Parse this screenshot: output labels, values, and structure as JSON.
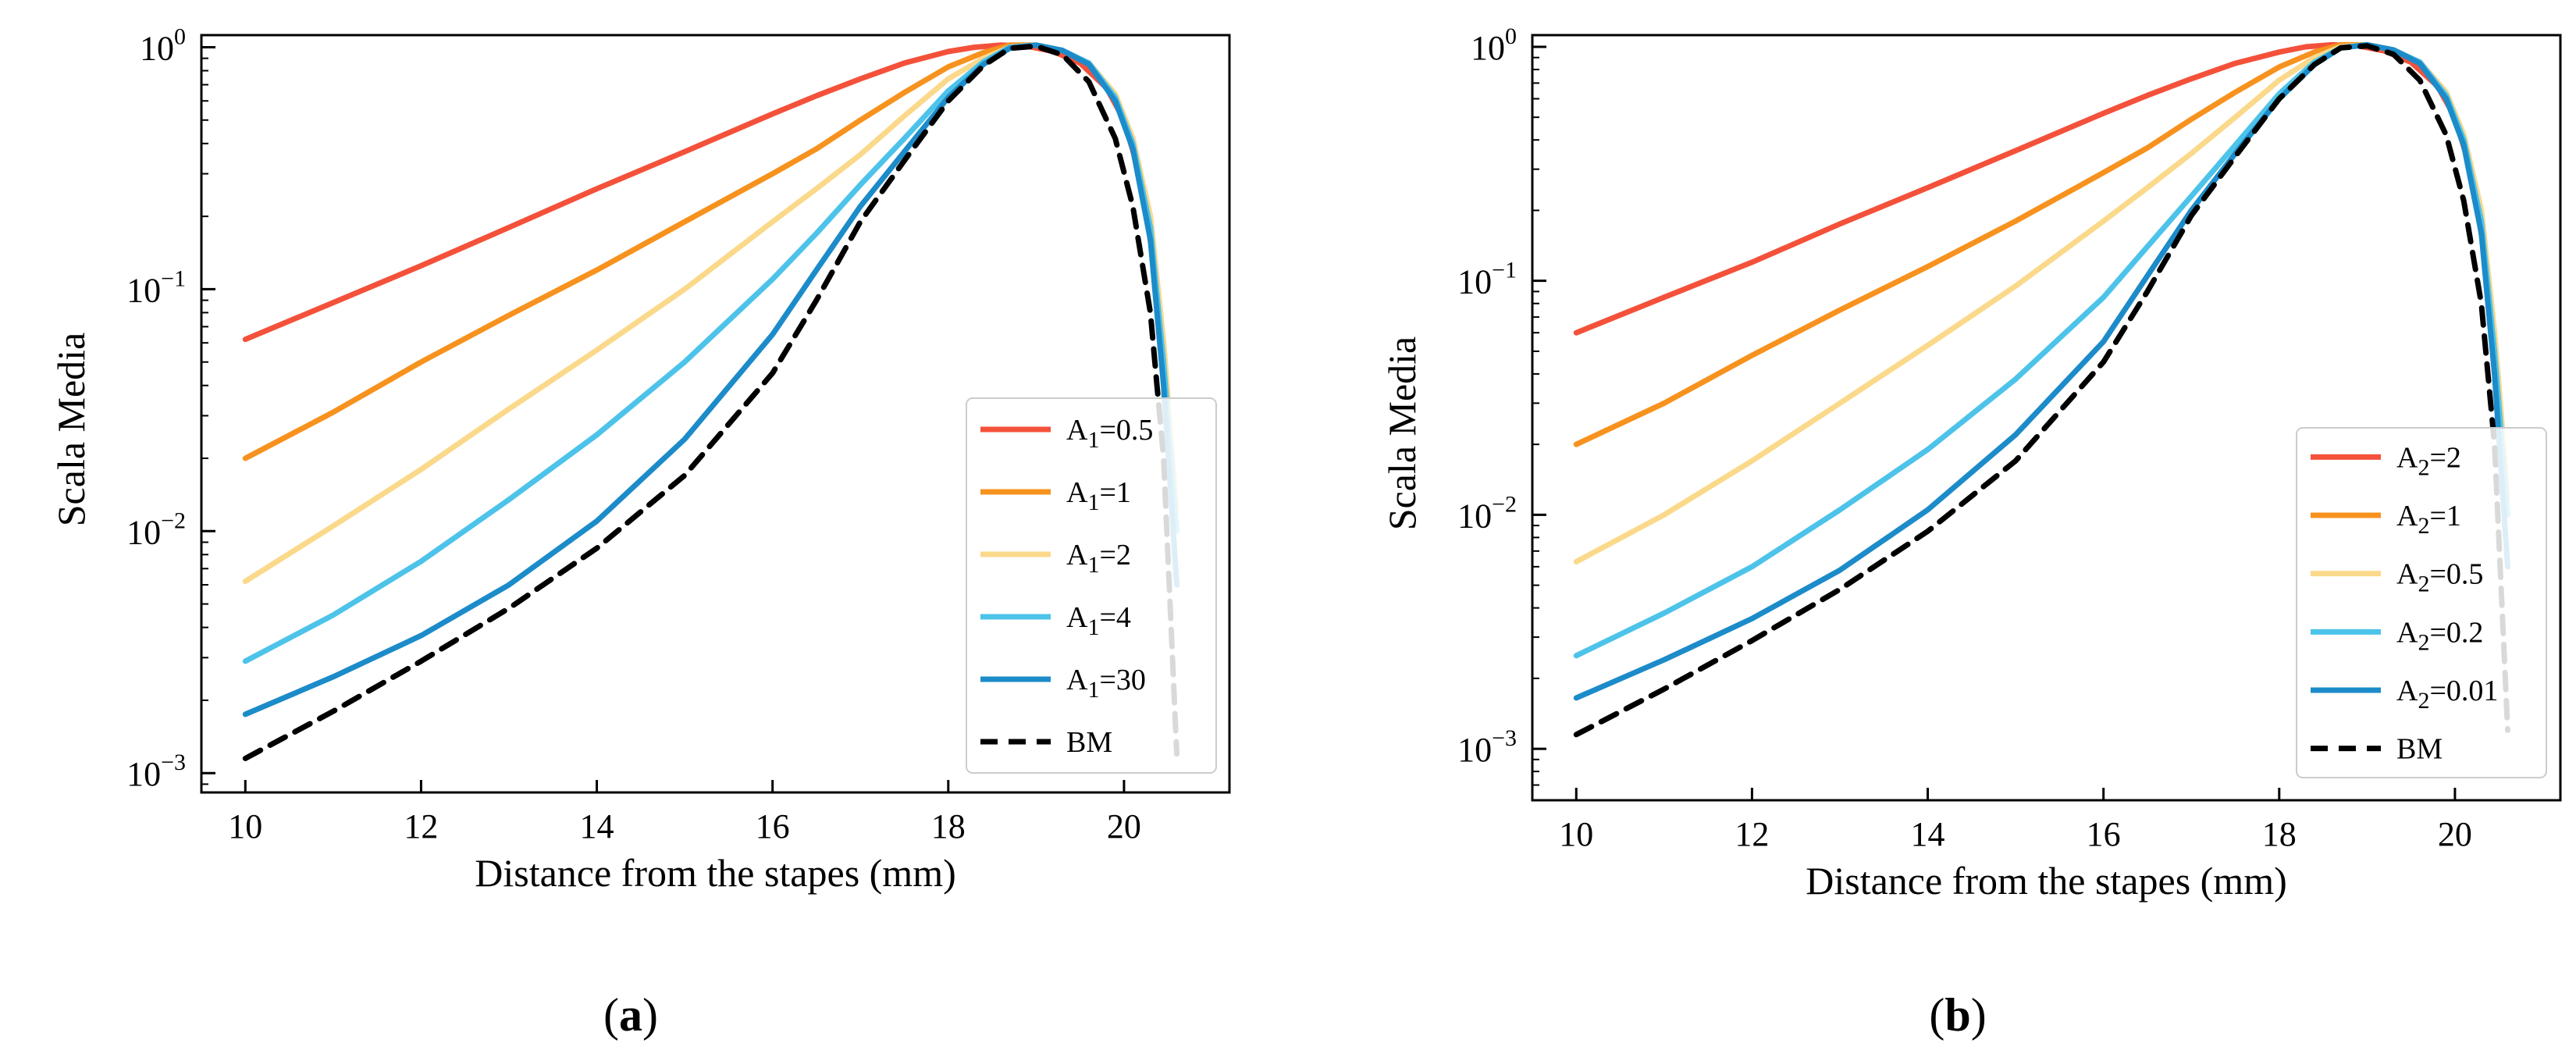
{
  "chart_data": [
    {
      "type": "line",
      "panel_label_open": "(",
      "panel_label_letter": "a",
      "panel_label_close": ")",
      "xlabel": "Distance from the stapes (mm)",
      "ylabel": "Scala Media",
      "xlim": [
        9.5,
        21.2
      ],
      "ylim_log10": [
        -3.08,
        0.05
      ],
      "yscale": "log",
      "xticks": [
        10,
        12,
        14,
        16,
        18,
        20
      ],
      "yticks": [
        {
          "base": "10",
          "exp": "0",
          "value": 1
        },
        {
          "base": "10",
          "exp": "−1",
          "value": 0.1
        },
        {
          "base": "10",
          "exp": "−2",
          "value": 0.01
        },
        {
          "base": "10",
          "exp": "−3",
          "value": 0.001
        }
      ],
      "legend_position": "lower-right",
      "series": [
        {
          "base": "A",
          "sub": "1",
          "suffix": "=0.5",
          "color": "#f4513a",
          "dash": "solid",
          "x": [
            10,
            11,
            12,
            13,
            14,
            15,
            16,
            16.5,
            17,
            17.5,
            18,
            18.3,
            18.6,
            18.9,
            19.2,
            19.5,
            19.8,
            20.0,
            20.2,
            20.4,
            20.55
          ],
          "y": [
            0.062,
            0.088,
            0.125,
            0.18,
            0.26,
            0.37,
            0.53,
            0.63,
            0.74,
            0.86,
            0.96,
            1.0,
            1.02,
            1.01,
            0.96,
            0.86,
            0.68,
            0.5,
            0.28,
            0.09,
            0.02
          ]
        },
        {
          "base": "A",
          "sub": "1",
          "suffix": "=1",
          "color": "#f7921e",
          "dash": "solid",
          "x": [
            10,
            11,
            12,
            13,
            14,
            15,
            16,
            16.5,
            17,
            17.5,
            18,
            18.4,
            18.7,
            19.0,
            19.3,
            19.6,
            19.9,
            20.1,
            20.3,
            20.45,
            20.6
          ],
          "y": [
            0.02,
            0.031,
            0.05,
            0.078,
            0.12,
            0.19,
            0.3,
            0.38,
            0.5,
            0.65,
            0.83,
            0.95,
            1.02,
            1.02,
            0.97,
            0.86,
            0.64,
            0.42,
            0.2,
            0.06,
            0.012
          ]
        },
        {
          "base": "A",
          "sub": "1",
          "suffix": "=2",
          "color": "#fbd98b",
          "dash": "solid",
          "x": [
            10,
            11,
            12,
            13,
            14,
            15,
            16,
            16.5,
            17,
            17.5,
            18,
            18.4,
            18.7,
            19.0,
            19.3,
            19.6,
            19.9,
            20.1,
            20.3,
            20.45,
            20.6
          ],
          "y": [
            0.0062,
            0.0105,
            0.018,
            0.032,
            0.056,
            0.1,
            0.19,
            0.26,
            0.36,
            0.52,
            0.74,
            0.9,
            1.0,
            1.02,
            0.97,
            0.86,
            0.64,
            0.42,
            0.2,
            0.06,
            0.012
          ]
        },
        {
          "base": "A",
          "sub": "1",
          "suffix": "=4",
          "color": "#4dc3ea",
          "dash": "solid",
          "x": [
            10,
            11,
            12,
            13,
            14,
            15,
            16,
            16.5,
            17,
            17.5,
            18,
            18.4,
            18.7,
            19.0,
            19.3,
            19.6,
            19.9,
            20.1,
            20.3,
            20.45,
            20.6
          ],
          "y": [
            0.0029,
            0.0045,
            0.0075,
            0.0135,
            0.025,
            0.05,
            0.11,
            0.17,
            0.27,
            0.42,
            0.66,
            0.87,
            1.0,
            1.02,
            0.97,
            0.86,
            0.62,
            0.4,
            0.18,
            0.05,
            0.01
          ]
        },
        {
          "base": "A",
          "sub": "1",
          "suffix": "=30",
          "color": "#1c8bc9",
          "dash": "solid",
          "x": [
            10,
            11,
            12,
            13,
            14,
            15,
            16,
            16.5,
            17,
            17.5,
            18,
            18.4,
            18.7,
            19.0,
            19.3,
            19.6,
            19.9,
            20.1,
            20.3,
            20.45,
            20.6
          ],
          "y": [
            0.00175,
            0.0025,
            0.0037,
            0.006,
            0.011,
            0.024,
            0.065,
            0.12,
            0.22,
            0.37,
            0.62,
            0.85,
            0.99,
            1.02,
            0.97,
            0.85,
            0.6,
            0.38,
            0.16,
            0.04,
            0.006
          ]
        },
        {
          "base": "BM",
          "sub": "",
          "suffix": "",
          "color": "#000000",
          "dash": "dashed",
          "x": [
            10,
            11,
            12,
            13,
            14,
            15,
            16,
            16.5,
            17,
            17.5,
            18,
            18.4,
            18.7,
            19.0,
            19.3,
            19.6,
            19.9,
            20.1,
            20.3,
            20.45,
            20.6
          ],
          "y": [
            0.00115,
            0.0018,
            0.0029,
            0.0048,
            0.0085,
            0.017,
            0.045,
            0.09,
            0.19,
            0.34,
            0.6,
            0.84,
            0.99,
            1.01,
            0.93,
            0.72,
            0.42,
            0.22,
            0.08,
            0.02,
            0.0012
          ]
        }
      ]
    },
    {
      "type": "line",
      "panel_label_open": "(",
      "panel_label_letter": "b",
      "panel_label_close": ")",
      "xlabel": "Distance from the stapes (mm)",
      "ylabel": "Scala Media",
      "xlim": [
        9.5,
        21.2
      ],
      "ylim_log10": [
        -3.22,
        0.05
      ],
      "yscale": "log",
      "xticks": [
        10,
        12,
        14,
        16,
        18,
        20
      ],
      "yticks": [
        {
          "base": "10",
          "exp": "0",
          "value": 1
        },
        {
          "base": "10",
          "exp": "−1",
          "value": 0.1
        },
        {
          "base": "10",
          "exp": "−2",
          "value": 0.01
        },
        {
          "base": "10",
          "exp": "−3",
          "value": 0.001
        }
      ],
      "legend_position": "lower-right",
      "series": [
        {
          "base": "A",
          "sub": "2",
          "suffix": "=2",
          "color": "#f4513a",
          "dash": "solid",
          "x": [
            10,
            11,
            12,
            13,
            14,
            15,
            16,
            16.5,
            17,
            17.5,
            18,
            18.3,
            18.6,
            18.9,
            19.2,
            19.5,
            19.8,
            20.0,
            20.2,
            20.4,
            20.55
          ],
          "y": [
            0.06,
            0.085,
            0.12,
            0.175,
            0.25,
            0.36,
            0.52,
            0.62,
            0.73,
            0.85,
            0.95,
            1.0,
            1.02,
            1.01,
            0.96,
            0.86,
            0.68,
            0.5,
            0.28,
            0.09,
            0.02
          ]
        },
        {
          "base": "A",
          "sub": "2",
          "suffix": "=1",
          "color": "#f7921e",
          "dash": "solid",
          "x": [
            10,
            11,
            12,
            13,
            14,
            15,
            16,
            16.5,
            17,
            17.5,
            18,
            18.4,
            18.7,
            19.0,
            19.3,
            19.6,
            19.9,
            20.1,
            20.3,
            20.45,
            20.6
          ],
          "y": [
            0.02,
            0.03,
            0.048,
            0.075,
            0.115,
            0.18,
            0.29,
            0.37,
            0.49,
            0.64,
            0.82,
            0.95,
            1.02,
            1.02,
            0.97,
            0.86,
            0.64,
            0.42,
            0.2,
            0.06,
            0.012
          ]
        },
        {
          "base": "A",
          "sub": "2",
          "suffix": "=0.5",
          "color": "#fbd98b",
          "dash": "solid",
          "x": [
            10,
            11,
            12,
            13,
            14,
            15,
            16,
            16.5,
            17,
            17.5,
            18,
            18.4,
            18.7,
            19.0,
            19.3,
            19.6,
            19.9,
            20.1,
            20.3,
            20.45,
            20.6
          ],
          "y": [
            0.0063,
            0.01,
            0.017,
            0.03,
            0.053,
            0.095,
            0.18,
            0.25,
            0.35,
            0.5,
            0.72,
            0.9,
            1.0,
            1.02,
            0.97,
            0.86,
            0.64,
            0.42,
            0.2,
            0.06,
            0.012
          ]
        },
        {
          "base": "A",
          "sub": "2",
          "suffix": "=0.2",
          "color": "#4dc3ea",
          "dash": "solid",
          "x": [
            10,
            11,
            12,
            13,
            14,
            15,
            16,
            16.5,
            17,
            17.5,
            18,
            18.4,
            18.7,
            19.0,
            19.3,
            19.6,
            19.9,
            20.1,
            20.3,
            20.45,
            20.6
          ],
          "y": [
            0.0025,
            0.0038,
            0.006,
            0.0105,
            0.019,
            0.038,
            0.085,
            0.14,
            0.23,
            0.38,
            0.63,
            0.86,
            0.99,
            1.02,
            0.97,
            0.86,
            0.62,
            0.4,
            0.18,
            0.05,
            0.01
          ]
        },
        {
          "base": "A",
          "sub": "2",
          "suffix": "=0.01",
          "color": "#1c8bc9",
          "dash": "solid",
          "x": [
            10,
            11,
            12,
            13,
            14,
            15,
            16,
            16.5,
            17,
            17.5,
            18,
            18.4,
            18.7,
            19.0,
            19.3,
            19.6,
            19.9,
            20.1,
            20.3,
            20.45,
            20.6
          ],
          "y": [
            0.00165,
            0.0024,
            0.0036,
            0.0058,
            0.0105,
            0.022,
            0.055,
            0.105,
            0.2,
            0.35,
            0.6,
            0.84,
            0.99,
            1.02,
            0.97,
            0.85,
            0.6,
            0.38,
            0.16,
            0.04,
            0.006
          ]
        },
        {
          "base": "BM",
          "sub": "",
          "suffix": "",
          "color": "#000000",
          "dash": "dashed",
          "x": [
            10,
            11,
            12,
            13,
            14,
            15,
            16,
            16.5,
            17,
            17.5,
            18,
            18.4,
            18.7,
            19.0,
            19.3,
            19.6,
            19.9,
            20.1,
            20.3,
            20.45,
            20.6
          ],
          "y": [
            0.00115,
            0.0018,
            0.0029,
            0.0048,
            0.0085,
            0.017,
            0.045,
            0.09,
            0.19,
            0.34,
            0.6,
            0.84,
            0.99,
            1.01,
            0.93,
            0.72,
            0.42,
            0.22,
            0.08,
            0.02,
            0.0012
          ]
        }
      ]
    }
  ]
}
